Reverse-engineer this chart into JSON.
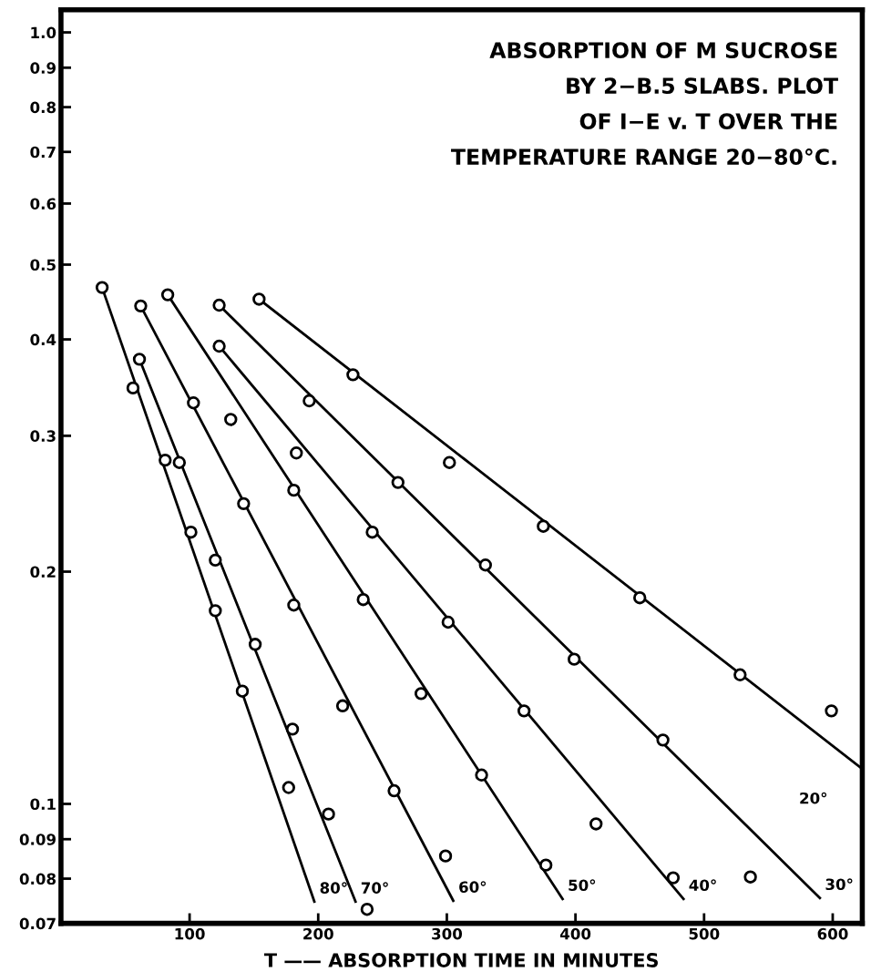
{
  "chart_data": {
    "type": "scatter",
    "title": "ABSORPTION OF M SUCROSE\nBY 2−B.5 SLABS. PLOT\nOF I−E v. T OVER THE\nTEMPERATURE RANGE 20−80°C.",
    "xlabel": "T —— ABSORPTION TIME IN MINUTES",
    "log": "y",
    "xlim": [
      0,
      623
    ],
    "ylim": [
      0.07,
      1.07
    ],
    "xticks": [
      100,
      200,
      300,
      400,
      500,
      600
    ],
    "yticks": [
      0.07,
      0.08,
      0.09,
      0.1,
      0.2,
      0.3,
      0.4,
      0.5,
      0.6,
      0.7,
      0.8,
      0.9,
      {
        "value": 1.0,
        "label": "1.0"
      }
    ],
    "grid": false,
    "line_style": "solid",
    "series": [
      {
        "marker": "circle",
        "color": "#000000",
        "x": [
          32,
          56,
          81,
          101,
          120,
          141,
          177
        ],
        "values": [
          0.467,
          0.346,
          0.279,
          0.225,
          0.178,
          0.14,
          0.105
        ]
      },
      {
        "type": "line",
        "marker": "none",
        "name": "80°",
        "color": "#000000",
        "x": [
          32,
          197
        ],
        "values": [
          0.467,
          0.0747
        ]
      },
      {
        "marker": "circle",
        "color": "#000000",
        "x": [
          61,
          92,
          120,
          151,
          180,
          208,
          238
        ],
        "values": [
          0.377,
          0.277,
          0.207,
          0.161,
          0.125,
          0.097,
          0.073
        ]
      },
      {
        "type": "line",
        "marker": "none",
        "name": "70°",
        "color": "#000000",
        "x": [
          61,
          229
        ],
        "values": [
          0.377,
          0.0747
        ]
      },
      {
        "marker": "circle",
        "color": "#000000",
        "x": [
          62,
          103,
          142,
          181,
          219,
          259,
          299
        ],
        "values": [
          0.442,
          0.331,
          0.245,
          0.181,
          0.134,
          0.104,
          0.0856
        ]
      },
      {
        "type": "line",
        "marker": "none",
        "name": "60°",
        "color": "#000000",
        "x": [
          62,
          305
        ],
        "values": [
          0.442,
          0.0749
        ]
      },
      {
        "marker": "circle",
        "color": "#000000",
        "x": [
          83,
          132,
          181,
          235,
          280,
          327,
          377
        ],
        "values": [
          0.457,
          0.315,
          0.255,
          0.184,
          0.139,
          0.109,
          0.0833
        ]
      },
      {
        "type": "line",
        "marker": "none",
        "name": "50°",
        "color": "#000000",
        "x": [
          83,
          390
        ],
        "values": [
          0.457,
          0.0753
        ]
      },
      {
        "marker": "circle",
        "color": "#000000",
        "x": [
          123,
          183,
          242,
          301,
          360,
          416,
          476
        ],
        "values": [
          0.392,
          0.285,
          0.225,
          0.172,
          0.132,
          0.0942,
          0.0802
        ]
      },
      {
        "type": "line",
        "marker": "none",
        "name": "40°",
        "color": "#000000",
        "x": [
          123,
          484
        ],
        "values": [
          0.392,
          0.0753
        ]
      },
      {
        "marker": "circle",
        "color": "#000000",
        "x": [
          123,
          193,
          262,
          330,
          399,
          468,
          536
        ],
        "values": [
          0.443,
          0.333,
          0.261,
          0.204,
          0.154,
          0.121,
          0.0804
        ]
      },
      {
        "type": "line",
        "marker": "none",
        "name": "30°",
        "color": "#000000",
        "x": [
          123,
          590
        ],
        "values": [
          0.443,
          0.0755
        ]
      },
      {
        "marker": "circle",
        "color": "#000000",
        "x": [
          154,
          227,
          302,
          375,
          450,
          528,
          599
        ],
        "values": [
          0.451,
          0.36,
          0.277,
          0.229,
          0.185,
          0.147,
          0.132
        ]
      },
      {
        "type": "line",
        "marker": "none",
        "name": "20°",
        "color": "#000000",
        "x": [
          154,
          623
        ],
        "values": [
          0.451,
          0.111
        ]
      }
    ]
  }
}
